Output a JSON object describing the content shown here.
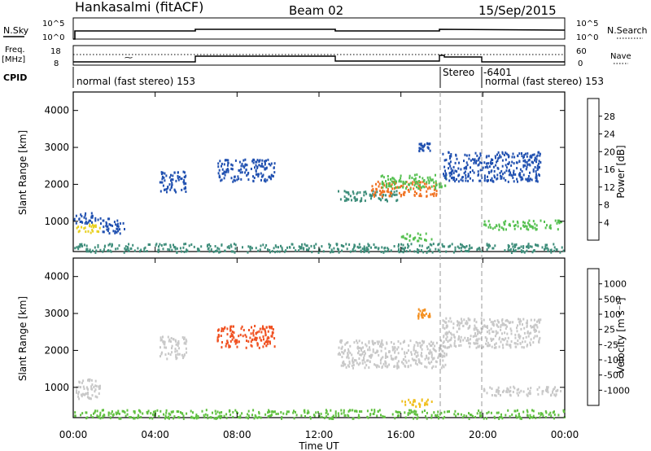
{
  "header": {
    "station": "Hankasalmi (fitACF)",
    "beam": "Beam 02",
    "date": "15/Sep/2015"
  },
  "summary_panels": {
    "nsky_label": "N.Sky",
    "nsearch_label": "N.Search",
    "noise_ticks": [
      "10^5",
      "10^0"
    ],
    "freq_label": "Freq.",
    "freq_unit": "[MHz]",
    "freq_ticks": [
      "18",
      "8"
    ],
    "nave_label": "Nave",
    "nave_ticks": [
      "60",
      "0"
    ],
    "cpid_label": "CPID",
    "cpid_segments": [
      {
        "text": "normal (fast stereo) 153"
      },
      {
        "text": "Stereo"
      },
      {
        "text": "-6401"
      },
      {
        "text": "normal (fast stereo) 153"
      }
    ]
  },
  "axes": {
    "xlabel": "Time UT",
    "x_ticks": [
      "00:00",
      "04:00",
      "08:00",
      "12:00",
      "16:00",
      "20:00",
      "00:00"
    ],
    "ylabel": "Slant Range [km]",
    "y_ticks": [
      "1000",
      "2000",
      "3000",
      "4000"
    ]
  },
  "colorbars": {
    "power": {
      "label": "Power [dB]",
      "ticks": [
        "4",
        "8",
        "12",
        "16",
        "20",
        "24",
        "28"
      ],
      "colors": [
        "#1030e0",
        "#2050b0",
        "#3d8d7a",
        "#55c050",
        "#e8d020",
        "#f4a020",
        "#f07020",
        "#e03010"
      ]
    },
    "velocity": {
      "label": "Velocity [m s⁻¹]",
      "ticks": [
        "1000",
        "500",
        "100",
        "25",
        "-25",
        "-100",
        "-500",
        "-1000"
      ],
      "colors": [
        "#2040d0",
        "#2a6aa8",
        "#2e8a5a",
        "#60c040",
        "#c8c8c8",
        "#f0c020",
        "#f49020",
        "#f05020",
        "#e01010"
      ]
    }
  },
  "chart_data": [
    {
      "type": "heatmap",
      "name": "power",
      "x_range_hours": [
        0,
        24
      ],
      "y_range_km": [
        180,
        4500
      ],
      "scatter_regions": [
        {
          "t": [
            0.0,
            1.3
          ],
          "r": [
            720,
            960
          ],
          "v": "#e8d020"
        },
        {
          "t": [
            0.0,
            1.3
          ],
          "r": [
            960,
            1250
          ],
          "v": "#2050b0"
        },
        {
          "t": [
            1.3,
            2.5
          ],
          "r": [
            700,
            1100
          ],
          "v": "#2050b0"
        },
        {
          "t": [
            0.0,
            24.0
          ],
          "r": [
            180,
            420
          ],
          "v": "#3d8d7a"
        },
        {
          "t": [
            4.2,
            5.5
          ],
          "r": [
            1800,
            2400
          ],
          "v": "#2050b0"
        },
        {
          "t": [
            7.0,
            9.8
          ],
          "r": [
            2100,
            2700
          ],
          "v": "#2050b0"
        },
        {
          "t": [
            12.9,
            15.8
          ],
          "r": [
            1550,
            1850
          ],
          "v": "#3d8d7a"
        },
        {
          "t": [
            14.5,
            17.8
          ],
          "r": [
            1700,
            2100
          ],
          "v": "#f07020"
        },
        {
          "t": [
            15.0,
            18.2
          ],
          "r": [
            1900,
            2300
          ],
          "v": "#55c050"
        },
        {
          "t": [
            16.8,
            17.4
          ],
          "r": [
            2900,
            3150
          ],
          "v": "#2050b0"
        },
        {
          "t": [
            16.0,
            17.5
          ],
          "r": [
            500,
            700
          ],
          "v": "#55c050"
        },
        {
          "t": [
            18.0,
            22.8
          ],
          "r": [
            2100,
            2900
          ],
          "v": "#2050b0"
        },
        {
          "t": [
            20.0,
            23.8
          ],
          "r": [
            800,
            1050
          ],
          "v": "#55c050"
        }
      ]
    },
    {
      "type": "heatmap",
      "name": "velocity",
      "x_range_hours": [
        0,
        24
      ],
      "y_range_km": [
        180,
        4500
      ],
      "scatter_regions": [
        {
          "t": [
            0.0,
            1.3
          ],
          "r": [
            720,
            1250
          ],
          "v": "#c8c8c8"
        },
        {
          "t": [
            0.0,
            24.0
          ],
          "r": [
            180,
            420
          ],
          "v": "#60c040"
        },
        {
          "t": [
            4.2,
            5.5
          ],
          "r": [
            1800,
            2400
          ],
          "v": "#c8c8c8"
        },
        {
          "t": [
            7.0,
            9.8
          ],
          "r": [
            2100,
            2700
          ],
          "v": "#f05020"
        },
        {
          "t": [
            12.9,
            18.2
          ],
          "r": [
            1550,
            2300
          ],
          "v": "#c8c8c8"
        },
        {
          "t": [
            16.8,
            17.4
          ],
          "r": [
            2900,
            3150
          ],
          "v": "#f49020"
        },
        {
          "t": [
            16.0,
            17.5
          ],
          "r": [
            500,
            700
          ],
          "v": "#f0c020"
        },
        {
          "t": [
            18.0,
            22.8
          ],
          "r": [
            2100,
            2900
          ],
          "v": "#c8c8c8"
        },
        {
          "t": [
            20.0,
            23.8
          ],
          "r": [
            800,
            1050
          ],
          "v": "#c8c8c8"
        }
      ]
    }
  ]
}
